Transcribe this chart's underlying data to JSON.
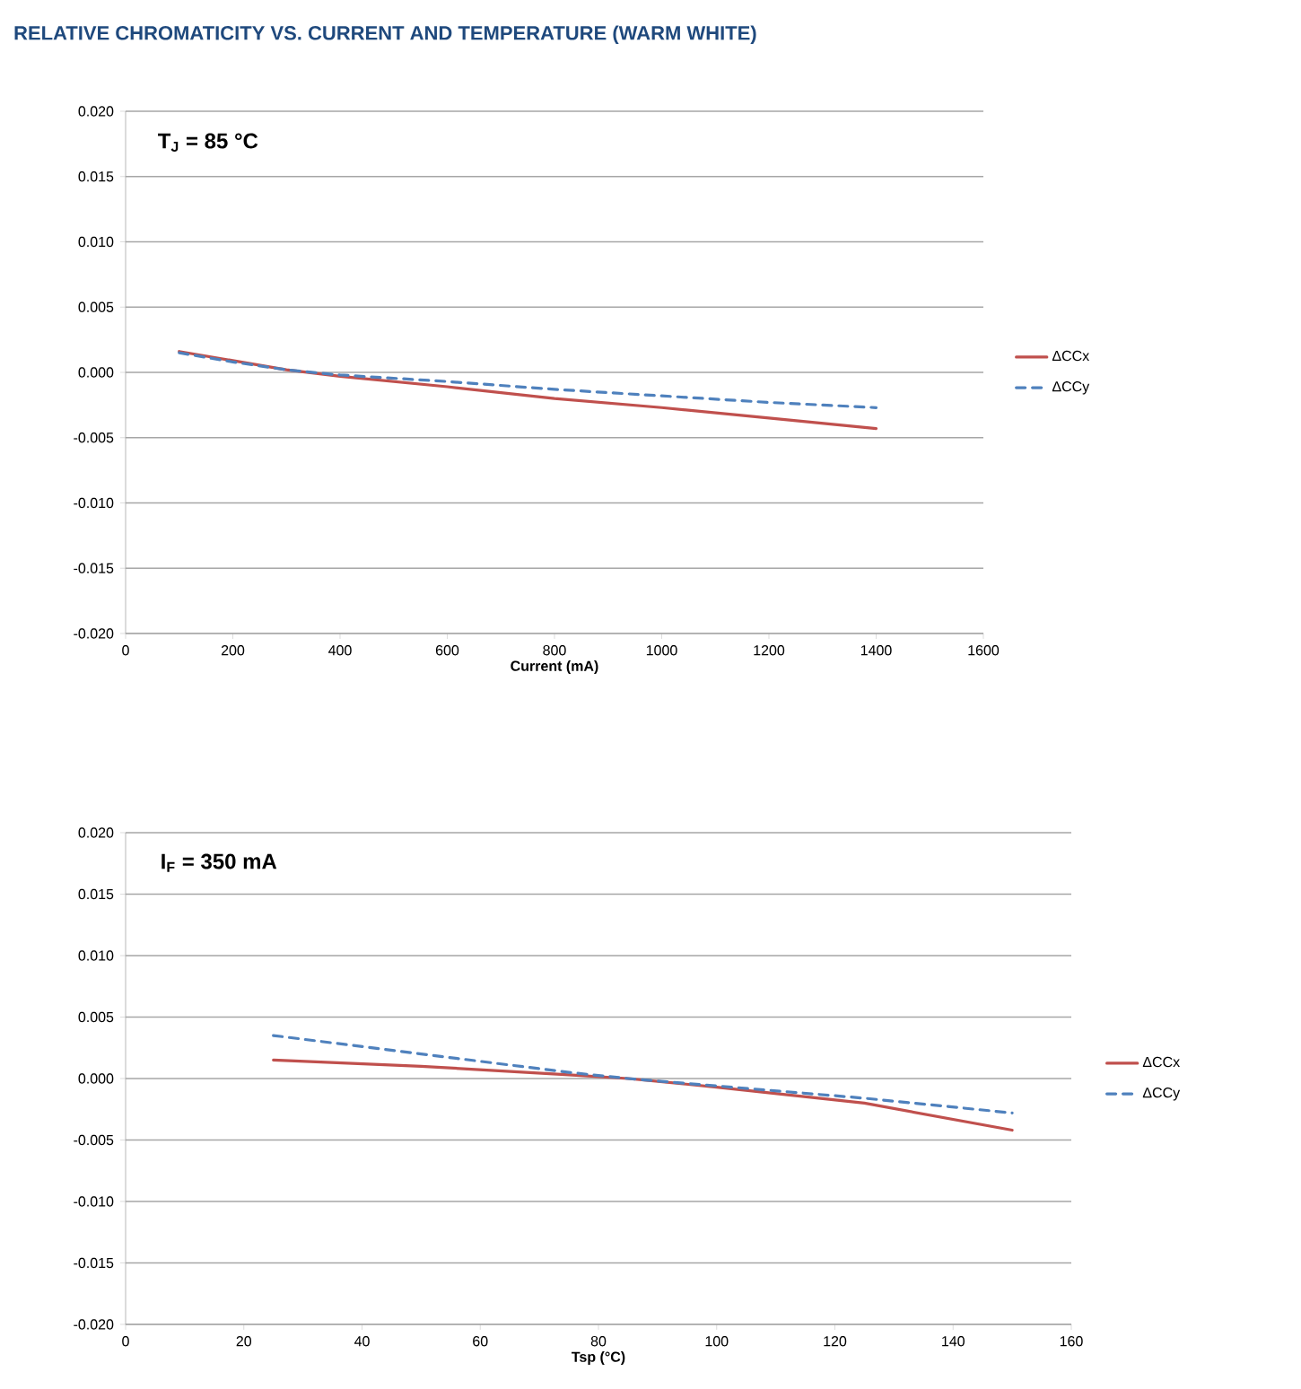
{
  "chart_data": [
    {
      "type": "line",
      "title": "RELATIVE CHROMATICITY VS. CURRENT AND TEMPERATURE (WARM WHITE)",
      "xlabel": "Current (mA)",
      "annotations": [
        "T$_{J}$ = 85 °C"
      ],
      "xlim": [
        0,
        1600
      ],
      "xticks": [
        0,
        200,
        400,
        600,
        800,
        1000,
        1200,
        1400,
        1600
      ],
      "ylim": [
        -0.02,
        0.02
      ],
      "yticks": [
        {
          "value": -0.02,
          "label": "-0.020"
        },
        {
          "value": -0.015,
          "label": "-0.015"
        },
        {
          "value": -0.01,
          "label": "-0.010"
        },
        {
          "value": -0.005,
          "label": "-0.005"
        },
        {
          "value": 0,
          "label": "0.000"
        },
        {
          "value": 0.005,
          "label": "0.005"
        },
        {
          "value": 0.01,
          "label": "0.010"
        },
        {
          "value": 0.015,
          "label": "0.015"
        },
        {
          "value": 0.02,
          "label": "0.020"
        }
      ],
      "grid": "y",
      "legend": "right",
      "marker": "none",
      "series": [
        {
          "name": "ΔCCx",
          "color": "#c0504d",
          "line_style": "solid",
          "x": [
            100,
            200,
            300,
            400,
            600,
            800,
            1000,
            1200,
            1400
          ],
          "values": [
            0.0016,
            0.0009,
            0.0002,
            -0.0003,
            -0.0011,
            -0.002,
            -0.0027,
            -0.0035,
            -0.0043
          ]
        },
        {
          "name": "ΔCCy",
          "color": "#4f81bd",
          "line_style": "dashed",
          "x": [
            100,
            200,
            300,
            400,
            600,
            800,
            1000,
            1200,
            1400
          ],
          "values": [
            0.0015,
            0.0008,
            0.0002,
            -0.0002,
            -0.0007,
            -0.0013,
            -0.0018,
            -0.0023,
            -0.0027
          ]
        }
      ]
    },
    {
      "type": "line",
      "xlabel": "Tsp (°C)",
      "annotations": [
        "I$_{F}$ = 350 mA"
      ],
      "xlim": [
        0,
        160
      ],
      "xticks": [
        0,
        20,
        40,
        60,
        80,
        100,
        120,
        140,
        160
      ],
      "ylim": [
        -0.02,
        0.02
      ],
      "yticks": [
        {
          "value": -0.02,
          "label": "-0.020"
        },
        {
          "value": -0.015,
          "label": "-0.015"
        },
        {
          "value": -0.01,
          "label": "-0.010"
        },
        {
          "value": -0.005,
          "label": "-0.005"
        },
        {
          "value": 0,
          "label": "0.000"
        },
        {
          "value": 0.005,
          "label": "0.005"
        },
        {
          "value": 0.01,
          "label": "0.010"
        },
        {
          "value": 0.015,
          "label": "0.015"
        },
        {
          "value": 0.02,
          "label": "0.020"
        }
      ],
      "grid": "y",
      "legend": "right",
      "marker": "none",
      "series": [
        {
          "name": "ΔCCx",
          "color": "#c0504d",
          "line_style": "solid",
          "x": [
            25,
            50,
            75,
            85,
            100,
            125,
            150
          ],
          "values": [
            0.0015,
            0.001,
            0.0003,
            0.0,
            -0.0007,
            -0.002,
            -0.0042
          ]
        },
        {
          "name": "ΔCCy",
          "color": "#4f81bd",
          "line_style": "dashed",
          "x": [
            25,
            50,
            75,
            85,
            100,
            125,
            150
          ],
          "values": [
            0.0035,
            0.002,
            0.0005,
            0.0,
            -0.0006,
            -0.0016,
            -0.0028
          ]
        }
      ]
    }
  ]
}
